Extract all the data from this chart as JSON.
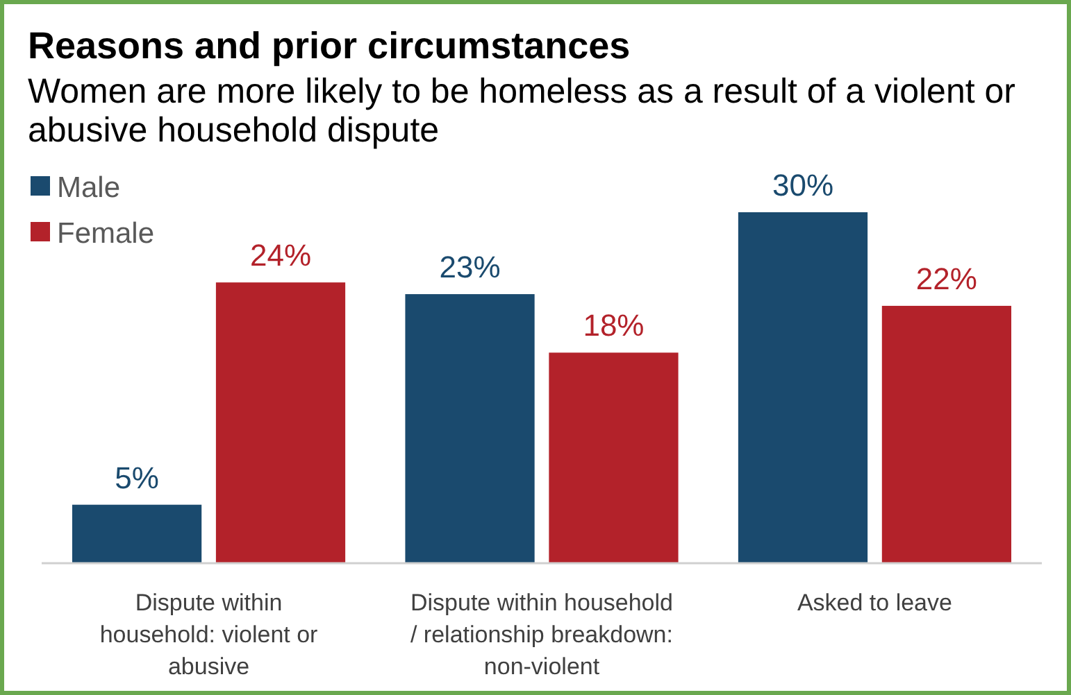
{
  "chart_data": {
    "type": "bar",
    "title": "Reasons and prior circumstances",
    "subtitle": "Women are more likely to be homeless as a result of a violent or abusive household dispute",
    "categories": [
      "Dispute within household: violent or abusive",
      "Dispute within household / relationship breakdown: non-violent",
      "Asked to leave"
    ],
    "series": [
      {
        "name": "Male",
        "color": "#1a4a6e",
        "values": [
          5,
          23,
          30
        ],
        "value_labels": [
          "5%",
          "23%",
          "30%"
        ]
      },
      {
        "name": "Female",
        "color": "#b3222a",
        "values": [
          24,
          18,
          22
        ],
        "value_labels": [
          "24%",
          "18%",
          "22%"
        ]
      }
    ],
    "legend": "top left"
  }
}
